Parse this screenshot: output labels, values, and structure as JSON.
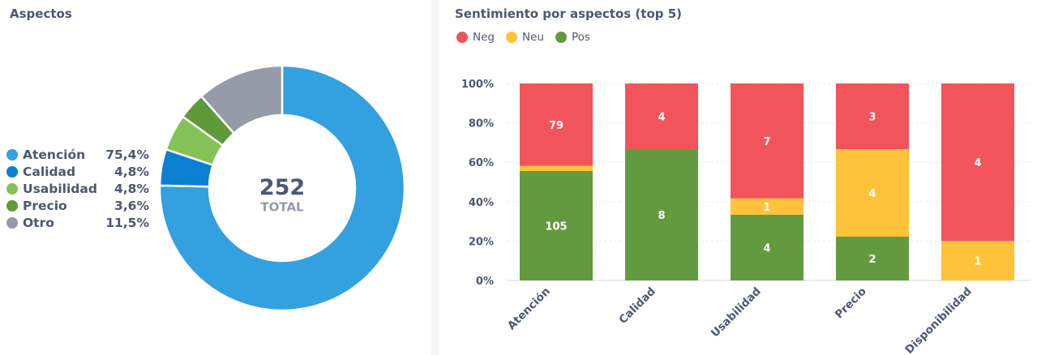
{
  "left": {
    "title": "Aspectos",
    "total_value": "252",
    "total_label": "TOTAL"
  },
  "right": {
    "title": "Sentimiento por aspectos (top 5)"
  },
  "colors": {
    "atencion": "#33a0e0",
    "calidad": "#0b7fd1",
    "usabilidad": "#84c257",
    "precio": "#5e9a3a",
    "otro": "#969ba8",
    "neg": "#f2545b",
    "neu": "#fec33a",
    "pos": "#639a3f"
  },
  "chart_data": [
    {
      "type": "pie",
      "title": "Aspectos",
      "center_value": "252",
      "center_label": "TOTAL",
      "slices": [
        {
          "name": "Atención",
          "percent": 75.4,
          "label": "75,4%",
          "color": "#33a0e0"
        },
        {
          "name": "Calidad",
          "percent": 4.8,
          "label": "4,8%",
          "color": "#0b7fd1"
        },
        {
          "name": "Usabilidad",
          "percent": 4.8,
          "label": "4,8%",
          "color": "#84c257"
        },
        {
          "name": "Precio",
          "percent": 3.6,
          "label": "3,6%",
          "color": "#5e9a3a"
        },
        {
          "name": "Otro",
          "percent": 11.5,
          "label": "11,5%",
          "color": "#969ba8"
        }
      ]
    },
    {
      "type": "bar",
      "stacked": "percent",
      "title": "Sentimiento por aspectos (top 5)",
      "categories": [
        "Atención",
        "Calidad",
        "Usabilidad",
        "Precio",
        "Disponibilidad"
      ],
      "series": [
        {
          "name": "Pos",
          "color": "#639a3f",
          "values": [
            105,
            8,
            4,
            2,
            0
          ]
        },
        {
          "name": "Neu",
          "color": "#fec33a",
          "values": [
            5,
            0,
            1,
            4,
            1
          ]
        },
        {
          "name": "Neg",
          "color": "#f2545b",
          "values": [
            79,
            4,
            7,
            3,
            4
          ]
        }
      ],
      "legend_order": [
        "Neg",
        "Neu",
        "Pos"
      ],
      "y_ticks": [
        "0%",
        "20%",
        "40%",
        "60%",
        "80%",
        "100%"
      ],
      "ylim": [
        0,
        100
      ],
      "legend": "top-left",
      "grid": true
    }
  ]
}
